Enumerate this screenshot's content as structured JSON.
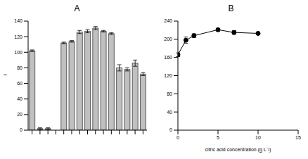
{
  "chart_data": [
    {
      "type": "bar",
      "title": "A",
      "y_label": "I",
      "categories": [
        null,
        null,
        null,
        null,
        null,
        null,
        null,
        null,
        null,
        null,
        null,
        null,
        null,
        null,
        null
      ],
      "values": [
        102,
        2,
        2,
        0,
        112,
        114,
        126,
        127,
        131,
        127,
        124,
        80,
        78,
        86,
        72
      ],
      "errors": [
        1,
        1,
        1,
        0,
        1,
        1,
        2,
        2,
        2,
        1,
        1,
        4,
        2,
        4,
        2
      ],
      "color": "#c0c0c0",
      "ylim": [
        0,
        140
      ],
      "yticks": [
        0,
        20,
        40,
        60,
        80,
        100,
        120,
        140
      ],
      "grid": false
    },
    {
      "type": "line",
      "title": "B",
      "x_label": "citric acid concentration (g L⁻¹)",
      "x": [
        0,
        1,
        2,
        5,
        7,
        10
      ],
      "values": [
        166,
        198,
        208,
        221,
        215,
        213
      ],
      "errors": [
        4,
        7,
        4,
        3,
        4,
        3
      ],
      "color": "#000000",
      "marker": "circle",
      "xlim": [
        0,
        15
      ],
      "xticks": [
        0,
        5,
        10,
        15
      ],
      "ylim": [
        0,
        240
      ],
      "yticks": [
        0,
        40,
        80,
        120,
        160,
        200,
        240
      ],
      "grid": false
    }
  ]
}
